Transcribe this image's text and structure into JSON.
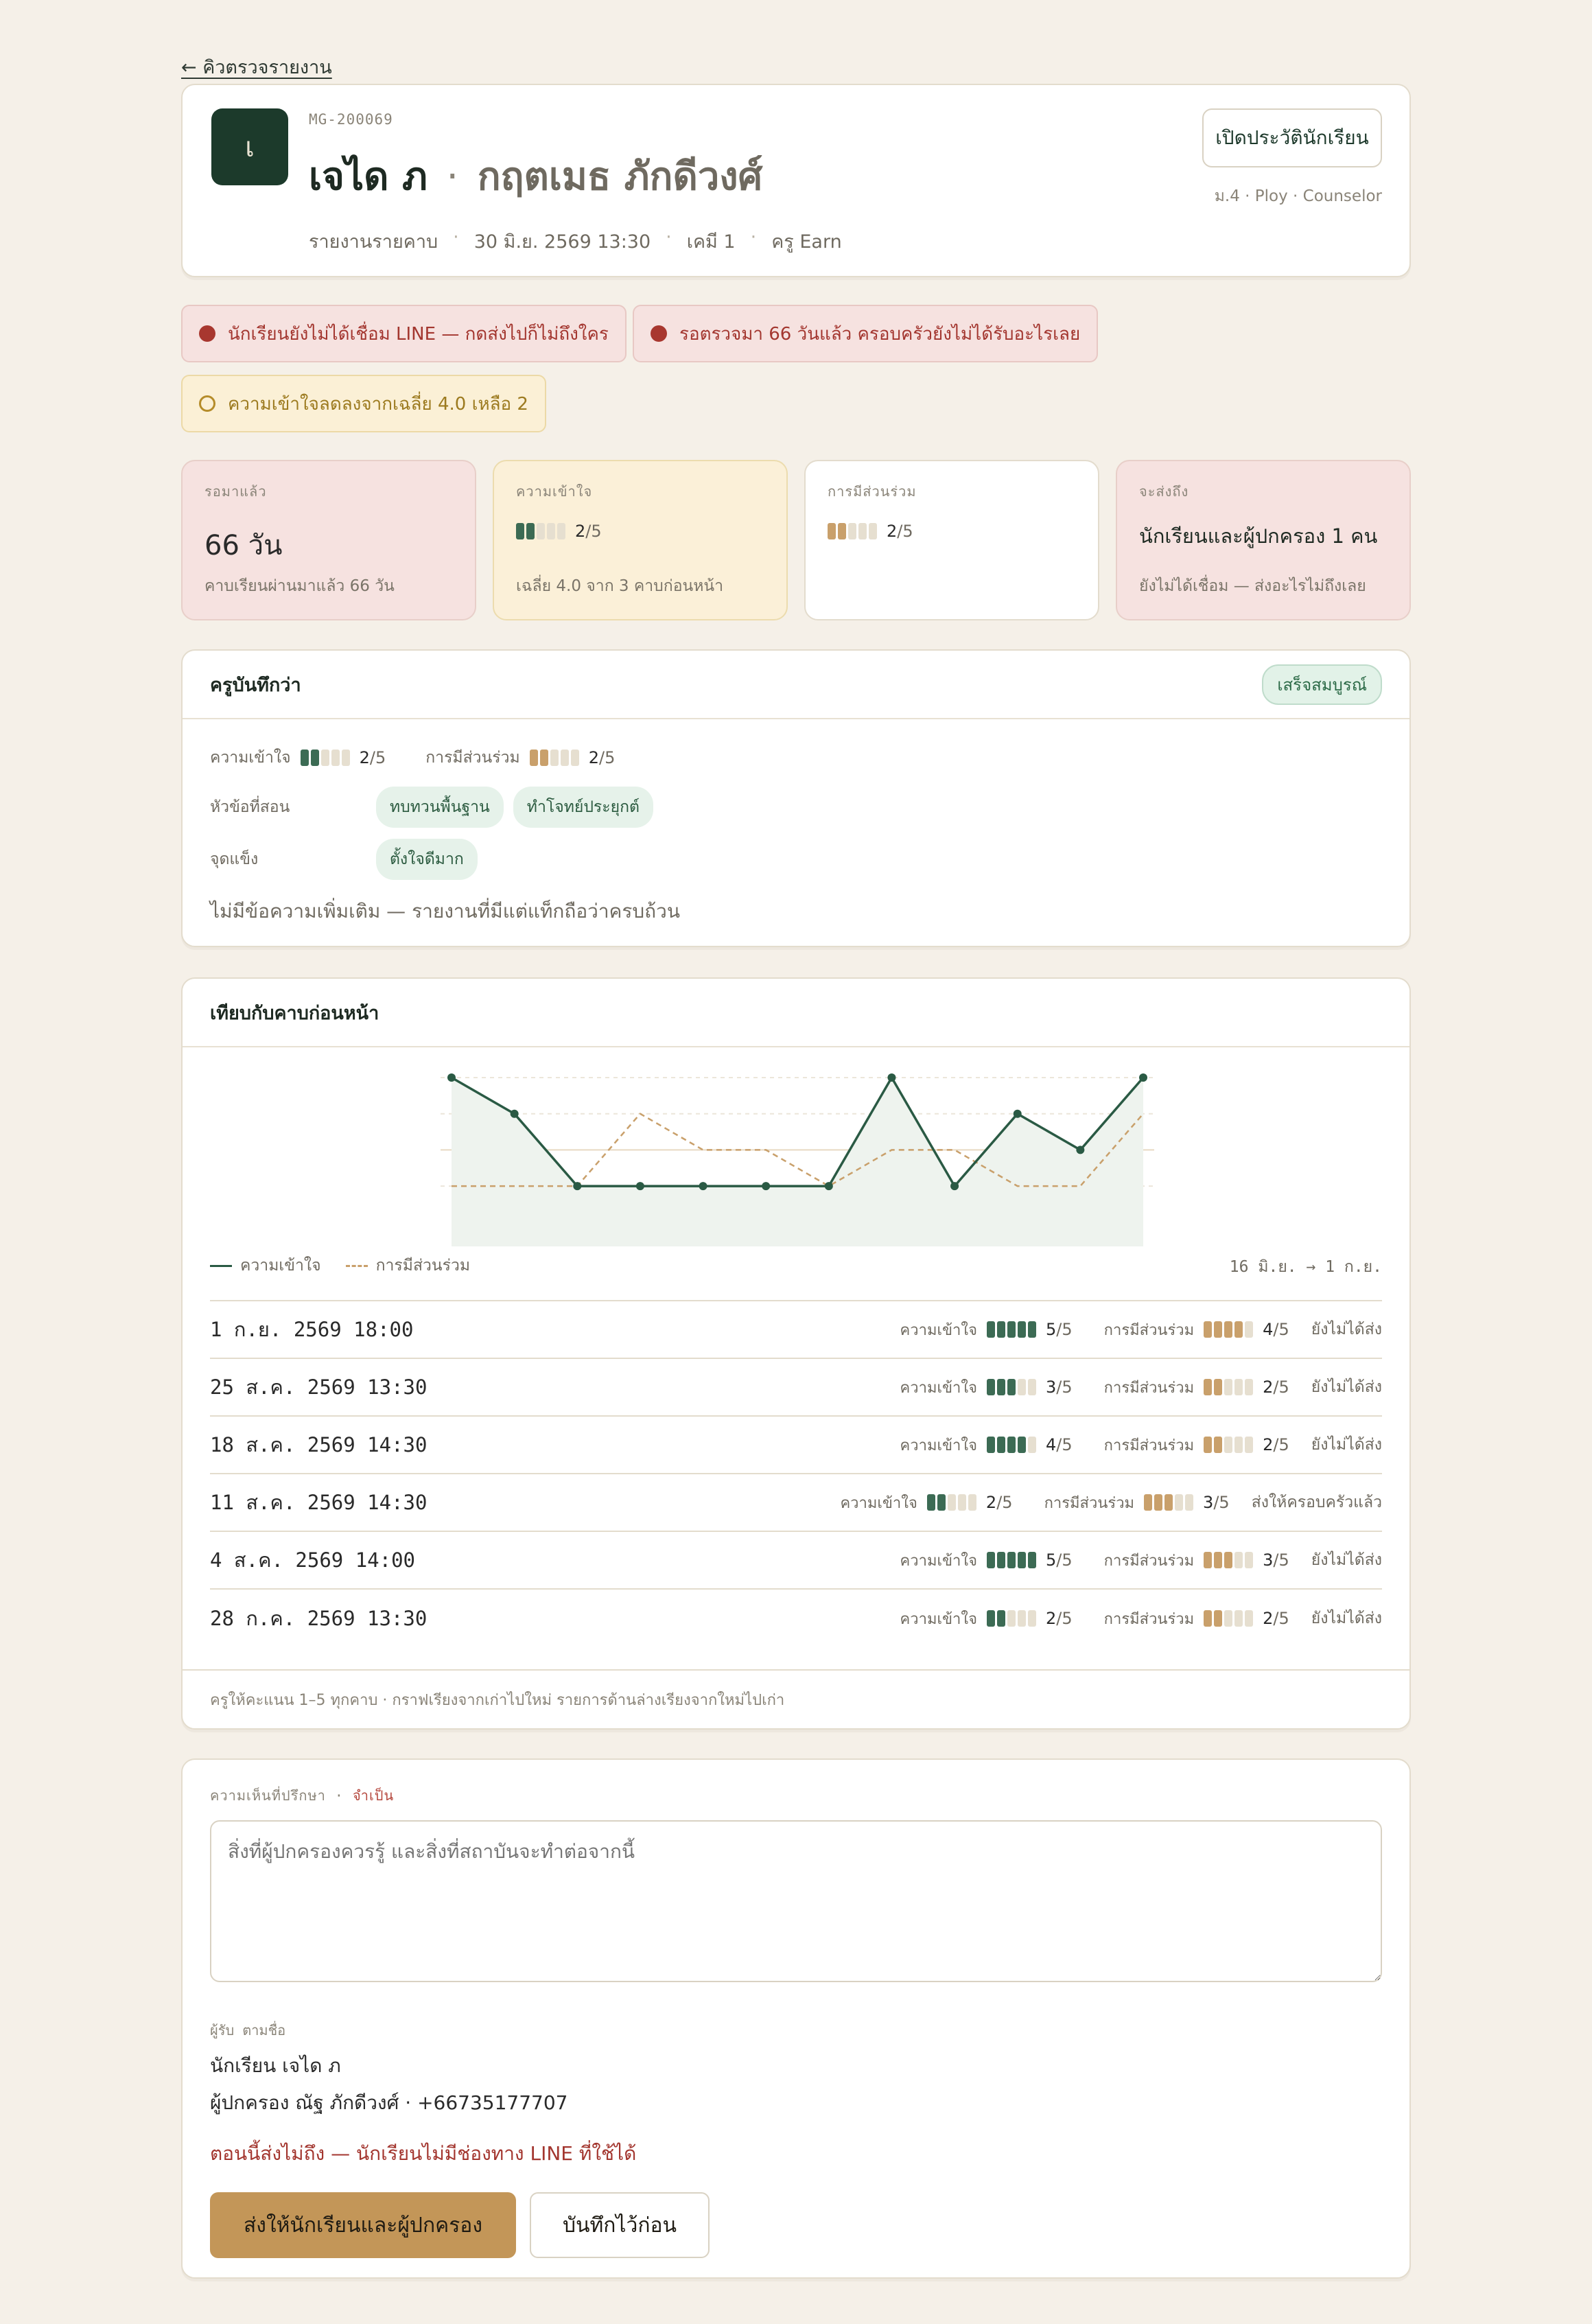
{
  "nav": {
    "back_label": "← คิวตรวจรายงาน"
  },
  "header": {
    "avatar_initial": "เ",
    "student_id": "MG-200069",
    "first_name": "เจได ภ",
    "separator": "·",
    "last_name": "กฤตเมธ ภักดีวงศ์",
    "meta": [
      "รายงานรายคาบ",
      "30 มิ.ย. 2569 13:30",
      "เคมี 1",
      "ครู Earn"
    ],
    "history_button": "เปิดประวัตินักเรียน",
    "class_info": "ม.4 · Ploy · Counselor"
  },
  "alerts": [
    {
      "type": "danger",
      "text": "นักเรียนยังไม่ได้เชื่อม LINE — กดส่งไปก็ไม่ถึงใคร"
    },
    {
      "type": "danger",
      "text": "รอตรวจมา 66 วันแล้ว ครอบครัวยังไม่ได้รับอะไรเลย"
    },
    {
      "type": "warning",
      "text": "ความเข้าใจลดลงจากเฉลี่ย 4.0 เหลือ 2"
    }
  ],
  "stats": {
    "waiting": {
      "label": "รอมาแล้ว",
      "value": "66  วัน",
      "sub": "คาบเรียนผ่านมาแล้ว 66 วัน"
    },
    "understanding": {
      "label": "ความเข้าใจ",
      "score": 2,
      "score_text": "2",
      "max_text": "/5",
      "sub": "เฉลี่ย 4.0 จาก 3 คาบก่อนหน้า"
    },
    "participation": {
      "label": "การมีส่วนร่วม",
      "score": 2,
      "score_text": "2",
      "max_text": "/5"
    },
    "recipients": {
      "label": "จะส่งถึง",
      "value": "นักเรียนและผู้ปกครอง 1 คน",
      "sub": "ยังไม่ได้เชื่อม — ส่งอะไรไม่ถึงเลย"
    }
  },
  "teacher_note": {
    "title": "ครูบันทึกว่า",
    "status": "เสร็จสมบูรณ์",
    "understanding_label": "ความเข้าใจ",
    "understanding_score": "2",
    "participation_label": "การมีส่วนร่วม",
    "participation_score": "2",
    "max_text": "/5",
    "topics_label": "หัวข้อที่สอน",
    "topics": [
      "ทบทวนพื้นฐาน",
      "ทำโจทย์ประยุกต์"
    ],
    "strengths_label": "จุดแข็ง",
    "strengths": [
      "ตั้งใจดีมาก"
    ],
    "message": "ไม่มีข้อความเพิ่มเติม — รายงานที่มีแต่แท็กถือว่าครบถ้วน"
  },
  "compare": {
    "title": "เทียบกับคาบก่อนหน้า",
    "legend_understanding": "ความเข้าใจ",
    "legend_participation": "การมีส่วนร่วม",
    "range": "16 มิ.ย. → 1 ก.ย.",
    "row_understanding_label": "ความเข้าใจ",
    "row_participation_label": "การมีส่วนร่วม",
    "max_text": "/5",
    "rows": [
      {
        "date": "1 ก.ย. 2569 18:00",
        "u": 5,
        "u_text": "5",
        "p": 4,
        "p_text": "4",
        "status": "ยังไม่ได้ส่ง"
      },
      {
        "date": "25 ส.ค. 2569 13:30",
        "u": 3,
        "u_text": "3",
        "p": 2,
        "p_text": "2",
        "status": "ยังไม่ได้ส่ง"
      },
      {
        "date": "18 ส.ค. 2569 14:30",
        "u": 4,
        "u_text": "4",
        "p": 2,
        "p_text": "2",
        "status": "ยังไม่ได้ส่ง"
      },
      {
        "date": "11 ส.ค. 2569 14:30",
        "u": 2,
        "u_text": "2",
        "p": 3,
        "p_text": "3",
        "status": "ส่งให้ครอบครัวแล้ว"
      },
      {
        "date": "4 ส.ค. 2569 14:00",
        "u": 5,
        "u_text": "5",
        "p": 3,
        "p_text": "3",
        "status": "ยังไม่ได้ส่ง"
      },
      {
        "date": "28 ก.ค. 2569 13:30",
        "u": 2,
        "u_text": "2",
        "p": 2,
        "p_text": "2",
        "status": "ยังไม่ได้ส่ง"
      }
    ],
    "footer": "ครูให้คะแนน 1–5 ทุกคาบ · กราฟเรียงจากเก่าไปใหม่ รายการด้านล่างเรียงจากใหม่ไปเก่า"
  },
  "chart_data": {
    "type": "line",
    "x": [
      1,
      2,
      3,
      4,
      5,
      6,
      7,
      8,
      9,
      10,
      11,
      12
    ],
    "ylim": [
      0,
      5
    ],
    "grid": true,
    "series": [
      {
        "name": "ความเข้าใจ",
        "values": [
          5,
          4,
          2,
          2,
          2,
          2,
          2,
          5,
          2,
          4,
          3,
          5
        ],
        "color": "#2a5a44",
        "style": "solid-area"
      },
      {
        "name": "การมีส่วนร่วม",
        "values": [
          2,
          2,
          2,
          4,
          3,
          3,
          2,
          3,
          3,
          2,
          2,
          4
        ],
        "color": "#c9a06b",
        "style": "dashed"
      }
    ]
  },
  "comment": {
    "label": "ความเห็นที่ปรึกษา",
    "dot": "·",
    "required": "จำเป็น",
    "placeholder": "สิ่งที่ผู้ปกครองควรรู้ และสิ่งที่สถาบันจะทำต่อจากนี้",
    "recipients_label": "ผู้รับ ตามชื่อ",
    "recipient_student": "นักเรียน เจได ภ",
    "recipient_parent": "ผู้ปกครอง ณัฐ ภักดีวงศ์ · +66735177707",
    "warning": "ตอนนี้ส่งไม่ถึง — นักเรียนไม่มีช่องทาง LINE ที่ใช้ได้",
    "send_button": "ส่งให้นักเรียนและผู้ปกครอง",
    "save_button": "บันทึกไว้ก่อน"
  }
}
